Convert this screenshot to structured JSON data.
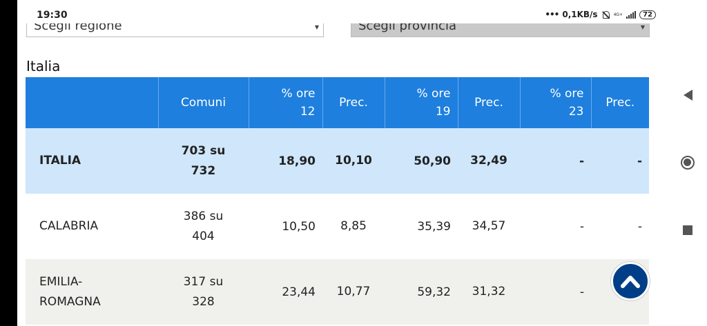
{
  "status": {
    "time": "19:30",
    "network": "0,1KB/s",
    "network_gen": "4G+",
    "battery": "72"
  },
  "filters": {
    "region_placeholder": "Scegli regione",
    "province_placeholder": "Scegli provincia"
  },
  "section_title": "Italia",
  "table": {
    "headers": {
      "comuni": "Comuni",
      "h12_a": "% ore",
      "h12_b": "12",
      "prec1": "Prec.",
      "h19_a": "% ore",
      "h19_b": "19",
      "prec2": "Prec.",
      "h23_a": "% ore",
      "h23_b": "23",
      "prec3": "Prec."
    },
    "rows": [
      {
        "name": "ITALIA",
        "comuni_a": "703 su",
        "comuni_b": "732",
        "ore12": "18,90",
        "prec12": "10,10",
        "ore19": "50,90",
        "prec19": "32,49",
        "ore23": "-",
        "prec23": "-"
      },
      {
        "name": "CALABRIA",
        "comuni_a": "386 su",
        "comuni_b": "404",
        "ore12": "10,50",
        "prec12": "8,85",
        "ore19": "35,39",
        "prec19": "34,57",
        "ore23": "-",
        "prec23": "-"
      },
      {
        "name_a": "EMILIA-",
        "name_b": "ROMAGNA",
        "comuni_a": "317 su",
        "comuni_b": "328",
        "ore12": "23,44",
        "prec12": "10,77",
        "ore19": "59,32",
        "prec19": "31,32",
        "ore23": "-",
        "prec23": ""
      }
    ]
  },
  "icons": {
    "scroll_top": "chevron-up-icon",
    "nav_back": "triangle-back-icon",
    "nav_home": "circle-home-icon",
    "nav_recents": "square-recents-icon"
  },
  "colors": {
    "header_blue": "#1e7fde",
    "total_row": "#cfe6fb",
    "alt_row": "#f0f1ec",
    "scroll_button": "#003f87"
  }
}
